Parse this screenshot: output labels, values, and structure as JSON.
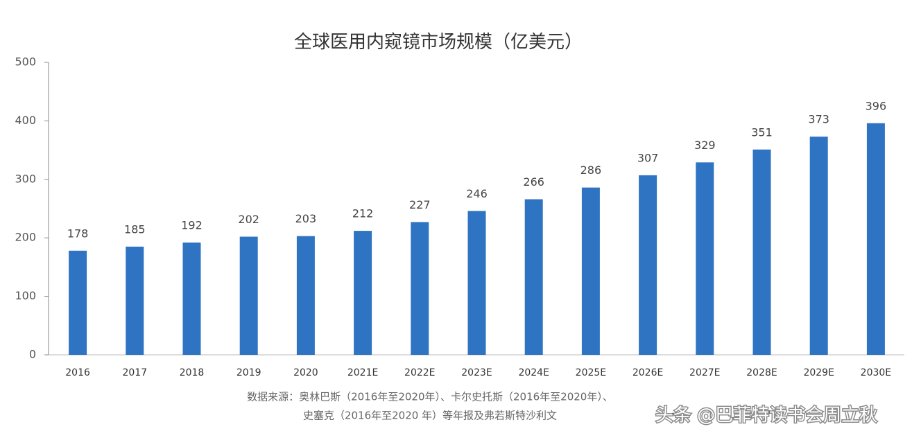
{
  "chart_data": {
    "type": "bar",
    "title": "全球医用内窥镜市场规模（亿美元）",
    "categories": [
      "2016",
      "2017",
      "2018",
      "2019",
      "2020",
      "2021E",
      "2022E",
      "2023E",
      "2024E",
      "2025E",
      "2026E",
      "2027E",
      "2028E",
      "2029E",
      "2030E"
    ],
    "values": [
      178,
      185,
      192,
      202,
      203,
      212,
      227,
      246,
      266,
      286,
      307,
      329,
      351,
      373,
      396
    ],
    "color": "#2e74c2",
    "ylim": [
      0,
      500
    ],
    "yticks": [
      0,
      100,
      200,
      300,
      400,
      500
    ],
    "grid": false,
    "source": [
      "数据来源：奥林巴斯（2016年至2020年）、卡尔史托斯（2016年至2020年）、",
      "史塞克（2016年至2020 年）等年报及弗若斯特沙利文"
    ],
    "watermark": "头条 @巴菲特读书会周立秋"
  }
}
